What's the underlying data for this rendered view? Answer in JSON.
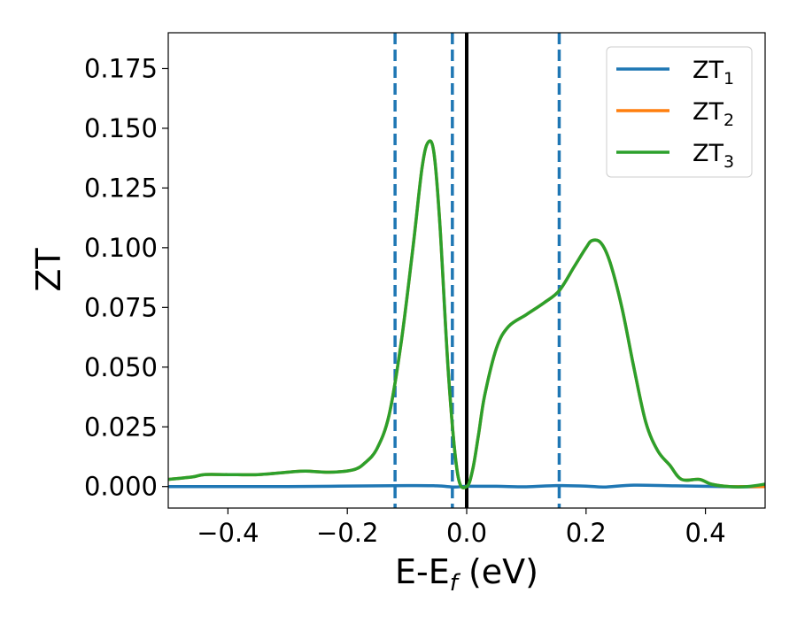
{
  "chart_data": {
    "type": "line",
    "xlabel_main": "E-E",
    "xlabel_sub": "f",
    "xlabel_unit": " (eV)",
    "ylabel": "ZT",
    "xlim": [
      -0.5,
      0.5
    ],
    "ylim": [
      -0.009,
      0.19
    ],
    "x_ticks": [
      -0.4,
      -0.2,
      0.0,
      0.2,
      0.4
    ],
    "x_tick_labels": [
      "−0.4",
      "−0.2",
      "0.0",
      "0.2",
      "0.4"
    ],
    "y_ticks": [
      0.0,
      0.025,
      0.05,
      0.075,
      0.1,
      0.125,
      0.15,
      0.175
    ],
    "y_tick_labels": [
      "0.000",
      "0.025",
      "0.050",
      "0.075",
      "0.100",
      "0.125",
      "0.150",
      "0.175"
    ],
    "grid": false,
    "legend_position": "top-right",
    "vertical_lines": [
      {
        "x": -0.12,
        "style": "dashed",
        "color": "#1f77b4"
      },
      {
        "x": -0.024,
        "style": "dashed",
        "color": "#1f77b4"
      },
      {
        "x": 0.0,
        "style": "solid",
        "color": "#000000"
      },
      {
        "x": 0.155,
        "style": "dashed",
        "color": "#1f77b4"
      }
    ],
    "series": [
      {
        "name": "ZT",
        "subscript": "1",
        "color": "#1f77b4",
        "x": [
          -0.5,
          -0.3,
          -0.1,
          -0.05,
          -0.02,
          0.0,
          0.05,
          0.1,
          0.15,
          0.2,
          0.23,
          0.28,
          0.35,
          0.45,
          0.5
        ],
        "y": [
          0.0,
          0.0,
          0.0004,
          0.0003,
          -0.0002,
          0.0001,
          0.0001,
          -0.0001,
          0.0004,
          0.0002,
          -0.0002,
          0.0006,
          0.0003,
          -0.0001,
          0.0
        ]
      },
      {
        "name": "ZT",
        "subscript": "2",
        "color": "#ff7f0e",
        "x": [
          -0.5,
          -0.46,
          -0.44,
          -0.4,
          -0.35,
          -0.3,
          -0.27,
          -0.23,
          -0.19,
          -0.17,
          -0.15,
          -0.13,
          -0.11,
          -0.09,
          -0.075,
          -0.065,
          -0.055,
          -0.045,
          -0.03,
          -0.015,
          0.0,
          0.01,
          0.02,
          0.03,
          0.05,
          0.07,
          0.1,
          0.13,
          0.155,
          0.18,
          0.2,
          0.21,
          0.225,
          0.24,
          0.26,
          0.28,
          0.3,
          0.32,
          0.34,
          0.36,
          0.39,
          0.41,
          0.44,
          0.47,
          0.5
        ],
        "y": [
          0.003,
          0.004,
          0.005,
          0.005,
          0.005,
          0.006,
          0.0065,
          0.006,
          0.007,
          0.01,
          0.016,
          0.03,
          0.06,
          0.1,
          0.133,
          0.144,
          0.14,
          0.11,
          0.045,
          0.005,
          0.0,
          0.007,
          0.022,
          0.038,
          0.058,
          0.067,
          0.072,
          0.077,
          0.082,
          0.092,
          0.1,
          0.103,
          0.102,
          0.094,
          0.075,
          0.05,
          0.027,
          0.015,
          0.009,
          0.003,
          0.003,
          0.001,
          0.0,
          0.0,
          0.0
        ]
      },
      {
        "name": "ZT",
        "subscript": "3",
        "color": "#2ca02c",
        "x": [
          -0.5,
          -0.46,
          -0.44,
          -0.4,
          -0.35,
          -0.3,
          -0.27,
          -0.23,
          -0.19,
          -0.17,
          -0.15,
          -0.13,
          -0.11,
          -0.09,
          -0.075,
          -0.065,
          -0.055,
          -0.045,
          -0.03,
          -0.015,
          0.0,
          0.01,
          0.02,
          0.03,
          0.05,
          0.07,
          0.1,
          0.13,
          0.155,
          0.18,
          0.2,
          0.21,
          0.225,
          0.24,
          0.26,
          0.28,
          0.3,
          0.32,
          0.34,
          0.36,
          0.39,
          0.41,
          0.44,
          0.47,
          0.5
        ],
        "y": [
          0.003,
          0.004,
          0.005,
          0.005,
          0.005,
          0.006,
          0.0065,
          0.006,
          0.007,
          0.01,
          0.016,
          0.03,
          0.06,
          0.1,
          0.133,
          0.144,
          0.14,
          0.11,
          0.045,
          0.005,
          0.0,
          0.007,
          0.022,
          0.038,
          0.058,
          0.067,
          0.072,
          0.077,
          0.082,
          0.092,
          0.1,
          0.103,
          0.102,
          0.094,
          0.075,
          0.05,
          0.027,
          0.015,
          0.009,
          0.003,
          0.003,
          0.001,
          0.0,
          0.0,
          0.001
        ]
      }
    ]
  }
}
